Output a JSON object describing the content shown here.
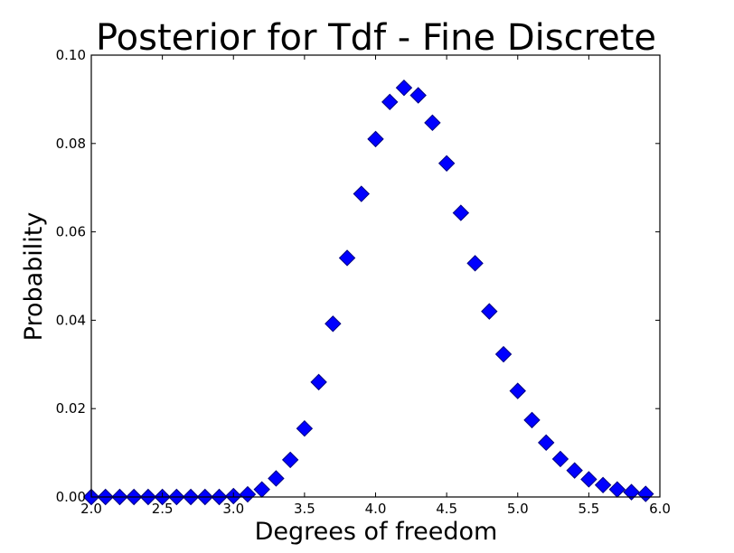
{
  "chart_data": {
    "type": "scatter",
    "title": "Posterior for Tdf - Fine Discrete",
    "xlabel": "Degrees of freedom",
    "ylabel": "Probability",
    "xlim": [
      2.0,
      6.0
    ],
    "ylim": [
      0.0,
      0.1
    ],
    "x_ticks": [
      "2.0",
      "2.5",
      "3.0",
      "3.5",
      "4.0",
      "4.5",
      "5.0",
      "5.5",
      "6.0"
    ],
    "y_ticks": [
      "0.00",
      "0.02",
      "0.04",
      "0.06",
      "0.08",
      "0.10"
    ],
    "marker": "diamond",
    "marker_color": "#0000ff",
    "grid": false,
    "x": [
      2.0,
      2.1,
      2.2,
      2.3,
      2.4,
      2.5,
      2.6,
      2.7,
      2.8,
      2.9,
      3.0,
      3.1,
      3.2,
      3.3,
      3.4,
      3.5,
      3.6,
      3.7,
      3.8,
      3.9,
      4.0,
      4.1,
      4.2,
      4.3,
      4.4,
      4.5,
      4.6,
      4.7,
      4.8,
      4.9,
      5.0,
      5.1,
      5.2,
      5.3,
      5.4,
      5.5,
      5.6,
      5.7,
      5.8,
      5.9
    ],
    "y": [
      0.0,
      0.0,
      0.0,
      0.0,
      0.0,
      0.0,
      0.0,
      0.0,
      0.0,
      0.0,
      0.0002,
      0.0006,
      0.0017,
      0.0042,
      0.0084,
      0.0155,
      0.026,
      0.0392,
      0.0541,
      0.0686,
      0.081,
      0.0894,
      0.0926,
      0.0909,
      0.0847,
      0.0755,
      0.0643,
      0.0529,
      0.042,
      0.0323,
      0.024,
      0.0174,
      0.0123,
      0.0086,
      0.006,
      0.004,
      0.0027,
      0.0017,
      0.0011,
      0.0007
    ]
  }
}
